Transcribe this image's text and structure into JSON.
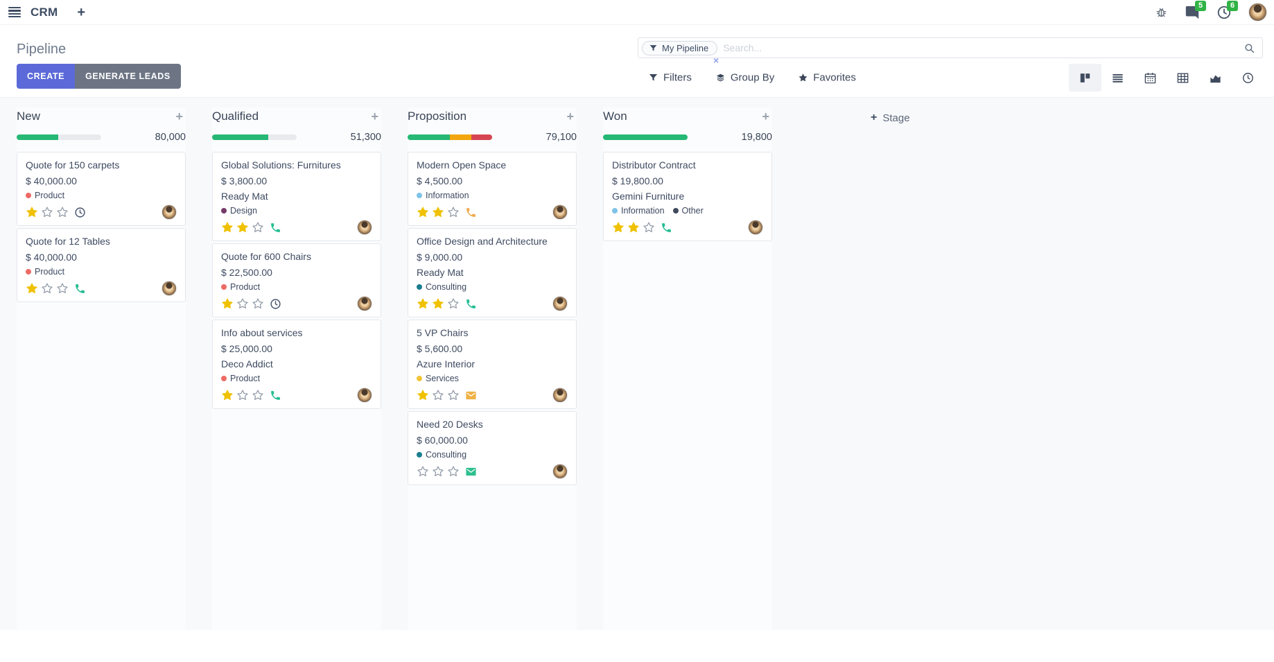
{
  "navbar": {
    "app_name": "CRM",
    "message_count": "5",
    "activity_count": "6"
  },
  "control_panel": {
    "title": "Pipeline",
    "create_label": "CREATE",
    "generate_leads_label": "GENERATE LEADS",
    "filters_label": "Filters",
    "group_by_label": "Group By",
    "favorites_label": "Favorites",
    "search_facet": "My Pipeline",
    "facet_remove": "×",
    "search_placeholder": "Search...",
    "views": [
      "kanban",
      "list",
      "calendar",
      "pivot",
      "graph",
      "activity"
    ],
    "active_view": "kanban"
  },
  "kanban": {
    "add_stage_label": "Stage",
    "progress_track_color": "#e9eaee",
    "columns": [
      {
        "name": "New",
        "total": "80,000",
        "progress": [
          {
            "color": "#26b875",
            "width_pct": 49
          }
        ],
        "cards": [
          {
            "title": "Quote for 150 carpets",
            "amount": "$ 40,000.00",
            "tags": [
              {
                "label": "Product",
                "color": "#ee6a64"
              }
            ],
            "stars": 1,
            "activity": {
              "icon": "clock",
              "color": "#44506a"
            }
          },
          {
            "title": "Quote for 12 Tables",
            "amount": "$ 40,000.00",
            "tags": [
              {
                "label": "Product",
                "color": "#ee6a64"
              }
            ],
            "stars": 1,
            "activity": {
              "icon": "phone",
              "color": "#24bd92"
            }
          }
        ]
      },
      {
        "name": "Qualified",
        "total": "51,300",
        "progress": [
          {
            "color": "#26b875",
            "width_pct": 66
          }
        ],
        "cards": [
          {
            "title": "Global Solutions: Furnitures",
            "amount": "$ 3,800.00",
            "partner": "Ready Mat",
            "tags": [
              {
                "label": "Design",
                "color": "#753b66"
              }
            ],
            "stars": 2,
            "activity": {
              "icon": "phone",
              "color": "#24bd92"
            }
          },
          {
            "title": "Quote for 600 Chairs",
            "amount": "$ 22,500.00",
            "tags": [
              {
                "label": "Product",
                "color": "#ee6a64"
              }
            ],
            "stars": 1,
            "activity": {
              "icon": "clock",
              "color": "#44506a"
            }
          },
          {
            "title": "Info about services",
            "amount": "$ 25,000.00",
            "partner": "Deco Addict",
            "tags": [
              {
                "label": "Product",
                "color": "#ee6a64"
              }
            ],
            "stars": 1,
            "activity": {
              "icon": "phone",
              "color": "#24bd92"
            }
          }
        ]
      },
      {
        "name": "Proposition",
        "total": "79,100",
        "progress": [
          {
            "color": "#26b875",
            "width_pct": 50
          },
          {
            "color": "#f2a60d",
            "width_pct": 25
          },
          {
            "color": "#d64552",
            "width_pct": 25
          }
        ],
        "cards": [
          {
            "title": "Modern Open Space",
            "amount": "$ 4,500.00",
            "tags": [
              {
                "label": "Information",
                "color": "#7fc3e8"
              }
            ],
            "stars": 2,
            "activity": {
              "icon": "phone",
              "color": "#f2a94e"
            }
          },
          {
            "title": "Office Design and Architecture",
            "amount": "$ 9,000.00",
            "partner": "Ready Mat",
            "tags": [
              {
                "label": "Consulting",
                "color": "#1b7e8f"
              }
            ],
            "stars": 2,
            "activity": {
              "icon": "phone",
              "color": "#24bd92"
            }
          },
          {
            "title": "5 VP Chairs",
            "amount": "$ 5,600.00",
            "partner": "Azure Interior",
            "tags": [
              {
                "label": "Services",
                "color": "#f2c437"
              }
            ],
            "stars": 1,
            "activity": {
              "icon": "envelope",
              "color": "#f0b145"
            }
          },
          {
            "title": "Need 20 Desks",
            "amount": "$ 60,000.00",
            "tags": [
              {
                "label": "Consulting",
                "color": "#1b7e8f"
              }
            ],
            "stars": 0,
            "activity": {
              "icon": "envelope",
              "color": "#2ebf8e"
            }
          }
        ]
      },
      {
        "name": "Won",
        "total": "19,800",
        "progress": [
          {
            "color": "#26b875",
            "width_pct": 100
          }
        ],
        "cards": [
          {
            "title": "Distributor Contract",
            "amount": "$ 19,800.00",
            "partner": "Gemini Furniture",
            "tags": [
              {
                "label": "Information",
                "color": "#7fc3e8"
              },
              {
                "label": "Other",
                "color": "#3f4b5c"
              }
            ],
            "stars": 2,
            "activity": {
              "icon": "phone",
              "color": "#24bd92"
            }
          }
        ]
      }
    ]
  }
}
